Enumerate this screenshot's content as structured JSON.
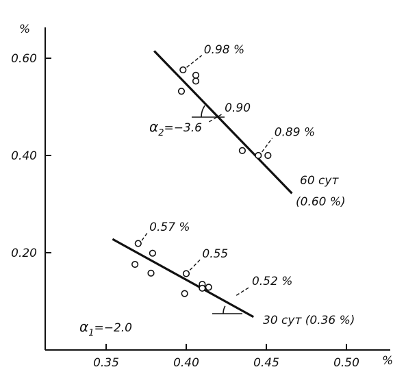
{
  "chart_data": {
    "type": "scatter",
    "title": "",
    "xlabel": "%",
    "ylabel": "%",
    "xlim": [
      0.32,
      0.52
    ],
    "ylim": [
      0.0,
      0.66
    ],
    "x_ticks": [
      {
        "value": 0.35,
        "label": "0.35"
      },
      {
        "value": 0.4,
        "label": "0.40"
      },
      {
        "value": 0.45,
        "label": "0.45"
      },
      {
        "value": 0.5,
        "label": "0.50"
      }
    ],
    "y_ticks": [
      {
        "value": 0.2,
        "label": "0.20"
      },
      {
        "value": 0.4,
        "label": "0.40"
      },
      {
        "value": 0.6,
        "label": "0.60"
      }
    ],
    "grid": false,
    "series": [
      {
        "points": [
          {
            "x": 0.398,
            "y": 0.576
          },
          {
            "x": 0.406,
            "y": 0.565
          },
          {
            "x": 0.406,
            "y": 0.553
          },
          {
            "x": 0.397,
            "y": 0.532
          },
          {
            "x": 0.435,
            "y": 0.41
          },
          {
            "x": 0.445,
            "y": 0.4
          },
          {
            "x": 0.451,
            "y": 0.4
          }
        ],
        "fit_line": {
          "x1": 0.38,
          "y1": 0.615,
          "x2": 0.466,
          "y2": 0.322
        },
        "slope_label": "α",
        "slope_subscript": "2",
        "slope_value": "=−3.6",
        "end_label_1": "60 сут",
        "end_label_2": "(0.60 %)",
        "point_labels": [
          {
            "text": "0.98 %",
            "x": 0.411,
            "y": 0.61,
            "px": 0.399,
            "py": 0.577
          },
          {
            "text": "0.90",
            "x": 0.424,
            "y": 0.49,
            "px": 0.413,
            "py": 0.465
          },
          {
            "text": "0.89 %",
            "x": 0.455,
            "y": 0.44,
            "px": 0.446,
            "py": 0.403
          }
        ]
      },
      {
        "points": [
          {
            "x": 0.37,
            "y": 0.219
          },
          {
            "x": 0.379,
            "y": 0.199
          },
          {
            "x": 0.368,
            "y": 0.176
          },
          {
            "x": 0.378,
            "y": 0.158
          },
          {
            "x": 0.4,
            "y": 0.157
          },
          {
            "x": 0.41,
            "y": 0.135
          },
          {
            "x": 0.414,
            "y": 0.129
          },
          {
            "x": 0.41,
            "y": 0.127
          },
          {
            "x": 0.399,
            "y": 0.116
          }
        ],
        "fit_line": {
          "x1": 0.354,
          "y1": 0.228,
          "x2": 0.442,
          "y2": 0.068
        },
        "slope_label": "α",
        "slope_subscript": "1",
        "slope_value": "=−2.0",
        "end_label_1": "30 сут (0.36 %)",
        "end_label_2": "",
        "point_labels": [
          {
            "text": "0.57 %",
            "x": 0.377,
            "y": 0.245,
            "px": 0.371,
            "py": 0.221
          },
          {
            "text": "0.55",
            "x": 0.41,
            "y": 0.19,
            "px": 0.401,
            "py": 0.16
          },
          {
            "text": "0.52 %",
            "x": 0.441,
            "y": 0.134,
            "px": 0.43,
            "py": 0.108
          }
        ]
      }
    ]
  }
}
